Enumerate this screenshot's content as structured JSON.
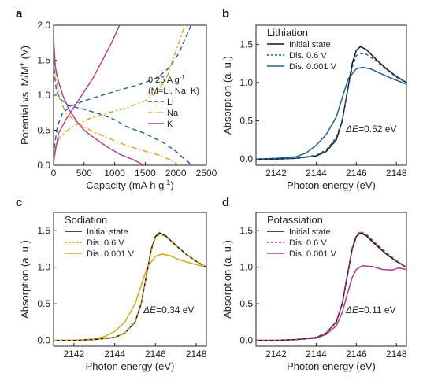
{
  "chart_data": [
    {
      "panel": "a",
      "type": "line",
      "xlabel": "Capacity (mA h g",
      "xlabel_sup": "-1",
      "xlabel_end": ")",
      "ylabel": "Potential vs. M/M",
      "ylabel_sup": "+",
      "ylabel_end": " (V)",
      "xlim": [
        0,
        2500
      ],
      "ylim": [
        0,
        2.0
      ],
      "xticks": [
        "0",
        "500",
        "1000",
        "1500",
        "2000",
        "2500"
      ],
      "yticks": [
        "0.0",
        "0.5",
        "1.0",
        "1.5",
        "2.0"
      ],
      "legend_title": [
        "0.25 A g",
        "(M=Li, Na, K)"
      ],
      "legend_title_sup": "-1",
      "series": [
        {
          "name": "Li",
          "color": "#1f5f99",
          "dash": "6,4",
          "segments": [
            [
              [
                0,
                1.6
              ],
              [
                20,
                1.25
              ],
              [
                50,
                1.05
              ],
              [
                100,
                0.95
              ],
              [
                250,
                0.85
              ],
              [
                500,
                0.8
              ],
              [
                800,
                0.72
              ],
              [
                1000,
                0.65
              ],
              [
                1200,
                0.55
              ],
              [
                1500,
                0.45
              ],
              [
                1800,
                0.32
              ],
              [
                2000,
                0.2
              ],
              [
                2100,
                0.12
              ],
              [
                2200,
                0.05
              ],
              [
                2250,
                0.0
              ]
            ],
            [
              [
                0,
                0.02
              ],
              [
                20,
                0.3
              ],
              [
                60,
                0.55
              ],
              [
                150,
                0.75
              ],
              [
                300,
                0.85
              ],
              [
                500,
                0.92
              ],
              [
                800,
                1.0
              ],
              [
                1100,
                1.08
              ],
              [
                1400,
                1.15
              ],
              [
                1700,
                1.25
              ],
              [
                1900,
                1.4
              ],
              [
                2050,
                1.6
              ],
              [
                2150,
                1.8
              ],
              [
                2250,
                2.0
              ]
            ]
          ]
        },
        {
          "name": "Na",
          "color": "#e0a21a",
          "dash": "7,3,2,3",
          "segments": [
            [
              [
                0,
                1.85
              ],
              [
                20,
                1.55
              ],
              [
                50,
                1.2
              ],
              [
                100,
                0.95
              ],
              [
                200,
                0.75
              ],
              [
                400,
                0.6
              ],
              [
                600,
                0.5
              ],
              [
                800,
                0.42
              ],
              [
                1000,
                0.35
              ],
              [
                1200,
                0.28
              ],
              [
                1500,
                0.2
              ],
              [
                1700,
                0.15
              ],
              [
                1900,
                0.08
              ],
              [
                2050,
                0.0
              ]
            ],
            [
              [
                0,
                0.02
              ],
              [
                30,
                0.25
              ],
              [
                100,
                0.4
              ],
              [
                300,
                0.55
              ],
              [
                600,
                0.67
              ],
              [
                900,
                0.75
              ],
              [
                1200,
                0.82
              ],
              [
                1500,
                0.92
              ],
              [
                1700,
                1.05
              ],
              [
                1850,
                1.25
              ],
              [
                1950,
                1.5
              ],
              [
                2050,
                1.75
              ],
              [
                2150,
                2.0
              ]
            ]
          ]
        },
        {
          "name": "K",
          "color": "#b03a8c",
          "dash": "",
          "segments": [
            [
              [
                0,
                1.8
              ],
              [
                30,
                1.4
              ],
              [
                80,
                1.2
              ],
              [
                150,
                1.0
              ],
              [
                250,
                0.8
              ],
              [
                400,
                0.6
              ],
              [
                500,
                0.5
              ],
              [
                650,
                0.4
              ],
              [
                900,
                0.25
              ],
              [
                1100,
                0.15
              ],
              [
                1300,
                0.08
              ],
              [
                1480,
                0.0
              ]
            ],
            [
              [
                0,
                0.05
              ],
              [
                30,
                0.2
              ],
              [
                80,
                0.45
              ],
              [
                200,
                0.65
              ],
              [
                350,
                0.85
              ],
              [
                500,
                1.05
              ],
              [
                650,
                1.25
              ],
              [
                800,
                1.5
              ],
              [
                950,
                1.75
              ],
              [
                1080,
                2.0
              ]
            ]
          ]
        }
      ]
    },
    {
      "panel": "b",
      "type": "line",
      "title": "Lithiation",
      "title_color": "#1f5f99",
      "xlabel": "Photon energy (eV)",
      "ylabel": "Absorption (a. u.)",
      "xlim": [
        2141,
        2148.5
      ],
      "ylim": [
        -0.08,
        1.75
      ],
      "xticks": [
        2142,
        2144,
        2146,
        2148
      ],
      "yticks": [
        "0.0",
        "0.5",
        "1.0",
        "1.5"
      ],
      "annotation": "=0.52 eV",
      "series": [
        {
          "name": "Initial state",
          "color": "#111111",
          "dash": ""
        },
        {
          "name": "Dis. 0.6 V",
          "color": "#1f5f99",
          "dash": "4,3"
        },
        {
          "name": "Dis. 0.001 V",
          "color": "#1f5f99",
          "dash": ""
        }
      ],
      "curves": [
        [
          [
            2141,
            0.0
          ],
          [
            2142,
            0.0
          ],
          [
            2143,
            0.01
          ],
          [
            2144,
            0.04
          ],
          [
            2144.5,
            0.1
          ],
          [
            2145,
            0.25
          ],
          [
            2145.3,
            0.5
          ],
          [
            2145.6,
            0.95
          ],
          [
            2145.8,
            1.25
          ],
          [
            2146,
            1.42
          ],
          [
            2146.2,
            1.47
          ],
          [
            2146.5,
            1.43
          ],
          [
            2147,
            1.3
          ],
          [
            2147.5,
            1.18
          ],
          [
            2148,
            1.08
          ],
          [
            2148.5,
            1.0
          ]
        ],
        [
          [
            2141,
            0.0
          ],
          [
            2142,
            0.0
          ],
          [
            2143,
            0.01
          ],
          [
            2144,
            0.05
          ],
          [
            2144.5,
            0.12
          ],
          [
            2145,
            0.28
          ],
          [
            2145.3,
            0.52
          ],
          [
            2145.6,
            0.93
          ],
          [
            2145.8,
            1.2
          ],
          [
            2146,
            1.35
          ],
          [
            2146.2,
            1.38
          ],
          [
            2146.5,
            1.37
          ],
          [
            2147,
            1.28
          ],
          [
            2147.5,
            1.17
          ],
          [
            2148,
            1.07
          ],
          [
            2148.5,
            1.0
          ]
        ],
        [
          [
            2141,
            0.0
          ],
          [
            2142,
            0.01
          ],
          [
            2143,
            0.03
          ],
          [
            2143.5,
            0.08
          ],
          [
            2144,
            0.18
          ],
          [
            2144.5,
            0.32
          ],
          [
            2145,
            0.55
          ],
          [
            2145.3,
            0.8
          ],
          [
            2145.6,
            1.05
          ],
          [
            2146,
            1.18
          ],
          [
            2146.3,
            1.2
          ],
          [
            2146.7,
            1.18
          ],
          [
            2147.2,
            1.12
          ],
          [
            2147.8,
            1.05
          ],
          [
            2148.5,
            0.98
          ]
        ]
      ]
    },
    {
      "panel": "c",
      "type": "line",
      "title": "Sodiation",
      "title_color": "#e0a21a",
      "xlabel": "Photon energy (eV)",
      "ylabel": "Absorption (a. u.)",
      "xlim": [
        2141,
        2148.5
      ],
      "ylim": [
        -0.08,
        1.75
      ],
      "xticks": [
        2142,
        2144,
        2146,
        2148
      ],
      "yticks": [
        "0.0",
        "0.5",
        "1.0",
        "1.5"
      ],
      "annotation": "=0.34 eV",
      "series": [
        {
          "name": "Initial state",
          "color": "#111111",
          "dash": ""
        },
        {
          "name": "Dis. 0.6 V",
          "color": "#e0a21a",
          "dash": "4,3"
        },
        {
          "name": "Dis. 0.001 V",
          "color": "#e0a21a",
          "dash": ""
        }
      ],
      "curves": [
        [
          [
            2141,
            0.0
          ],
          [
            2142,
            0.0
          ],
          [
            2143,
            0.01
          ],
          [
            2144,
            0.04
          ],
          [
            2144.5,
            0.1
          ],
          [
            2145,
            0.25
          ],
          [
            2145.3,
            0.5
          ],
          [
            2145.6,
            0.95
          ],
          [
            2145.8,
            1.25
          ],
          [
            2146,
            1.42
          ],
          [
            2146.2,
            1.47
          ],
          [
            2146.5,
            1.43
          ],
          [
            2147,
            1.3
          ],
          [
            2147.5,
            1.18
          ],
          [
            2148,
            1.08
          ],
          [
            2148.5,
            1.0
          ]
        ],
        [
          [
            2141,
            0.0
          ],
          [
            2142,
            0.0
          ],
          [
            2143,
            0.01
          ],
          [
            2144,
            0.04
          ],
          [
            2144.5,
            0.1
          ],
          [
            2145,
            0.26
          ],
          [
            2145.3,
            0.51
          ],
          [
            2145.6,
            0.95
          ],
          [
            2145.8,
            1.23
          ],
          [
            2146,
            1.4
          ],
          [
            2146.2,
            1.45
          ],
          [
            2146.5,
            1.42
          ],
          [
            2147,
            1.3
          ],
          [
            2147.5,
            1.18
          ],
          [
            2148,
            1.08
          ],
          [
            2148.5,
            1.0
          ]
        ],
        [
          [
            2141,
            0.0
          ],
          [
            2142,
            0.0
          ],
          [
            2143,
            0.02
          ],
          [
            2143.5,
            0.05
          ],
          [
            2144,
            0.12
          ],
          [
            2144.5,
            0.25
          ],
          [
            2145,
            0.5
          ],
          [
            2145.3,
            0.75
          ],
          [
            2145.6,
            1.0
          ],
          [
            2146,
            1.15
          ],
          [
            2146.3,
            1.18
          ],
          [
            2146.7,
            1.16
          ],
          [
            2147.2,
            1.1
          ],
          [
            2147.8,
            1.05
          ],
          [
            2148.5,
            1.0
          ]
        ]
      ]
    },
    {
      "panel": "d",
      "type": "line",
      "title": "Potassiation",
      "title_color": "#b03a8c",
      "xlabel": "Photon energy (eV)",
      "ylabel": "Absorption (a. u.)",
      "xlim": [
        2141,
        2148.5
      ],
      "ylim": [
        -0.08,
        1.75
      ],
      "xticks": [
        2142,
        2144,
        2146,
        2148
      ],
      "yticks": [
        "0.0",
        "0.5",
        "1.0",
        "1.5"
      ],
      "annotation": "=0.11 eV",
      "series": [
        {
          "name": "Initial state",
          "color": "#111111",
          "dash": ""
        },
        {
          "name": "Dis. 0.6 V",
          "color": "#b03a8c",
          "dash": "4,3"
        },
        {
          "name": "Dis. 0.001 V",
          "color": "#b03a8c",
          "dash": ""
        }
      ],
      "curves": [
        [
          [
            2141,
            0.0
          ],
          [
            2142,
            0.0
          ],
          [
            2143,
            0.01
          ],
          [
            2144,
            0.04
          ],
          [
            2144.5,
            0.1
          ],
          [
            2145,
            0.25
          ],
          [
            2145.3,
            0.5
          ],
          [
            2145.6,
            0.95
          ],
          [
            2145.8,
            1.25
          ],
          [
            2146,
            1.42
          ],
          [
            2146.2,
            1.47
          ],
          [
            2146.5,
            1.43
          ],
          [
            2147,
            1.3
          ],
          [
            2147.5,
            1.18
          ],
          [
            2148,
            1.08
          ],
          [
            2148.5,
            1.0
          ]
        ],
        [
          [
            2141,
            0.0
          ],
          [
            2142,
            0.0
          ],
          [
            2143,
            0.01
          ],
          [
            2144,
            0.04
          ],
          [
            2144.5,
            0.1
          ],
          [
            2145,
            0.26
          ],
          [
            2145.3,
            0.52
          ],
          [
            2145.6,
            0.97
          ],
          [
            2145.8,
            1.27
          ],
          [
            2146,
            1.44
          ],
          [
            2146.2,
            1.49
          ],
          [
            2146.5,
            1.45
          ],
          [
            2147,
            1.32
          ],
          [
            2147.5,
            1.2
          ],
          [
            2148,
            1.09
          ],
          [
            2148.5,
            1.0
          ]
        ],
        [
          [
            2141,
            0.0
          ],
          [
            2142,
            0.0
          ],
          [
            2143,
            0.01
          ],
          [
            2144,
            0.03
          ],
          [
            2144.5,
            0.08
          ],
          [
            2145,
            0.2
          ],
          [
            2145.3,
            0.38
          ],
          [
            2145.6,
            0.68
          ],
          [
            2145.8,
            0.86
          ],
          [
            2146,
            0.97
          ],
          [
            2146.3,
            1.02
          ],
          [
            2146.8,
            1.01
          ],
          [
            2147.3,
            0.97
          ],
          [
            2147.8,
            0.96
          ],
          [
            2148.1,
            0.99
          ],
          [
            2148.5,
            0.97
          ]
        ]
      ]
    }
  ],
  "delta_symbol": "ΔE"
}
